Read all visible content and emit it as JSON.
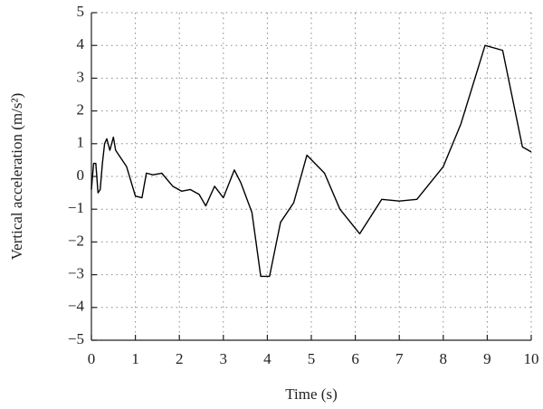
{
  "chart_data": {
    "type": "line",
    "xlabel": "Time (s)",
    "ylabel": "Vertical acceleration (m/s²)",
    "xlim": [
      0,
      10
    ],
    "ylim": [
      -5,
      5
    ],
    "xticks": [
      0,
      1,
      2,
      3,
      4,
      5,
      6,
      7,
      8,
      9,
      10
    ],
    "yticks": [
      {
        "value": -5,
        "label": "−5"
      },
      {
        "value": -4,
        "label": "−4"
      },
      {
        "value": -3,
        "label": "−3"
      },
      {
        "value": -2,
        "label": "−2"
      },
      {
        "value": -1,
        "label": "−1"
      },
      0,
      1,
      2,
      3,
      4,
      5
    ],
    "grid": true,
    "series": [
      {
        "color": "#000000",
        "x": [
          0.0,
          0.05,
          0.1,
          0.15,
          0.2,
          0.25,
          0.3,
          0.35,
          0.42,
          0.5,
          0.55,
          0.8,
          1.0,
          1.15,
          1.25,
          1.4,
          1.6,
          1.85,
          2.05,
          2.25,
          2.45,
          2.6,
          2.8,
          3.0,
          3.25,
          3.4,
          3.65,
          3.85,
          4.05,
          4.3,
          4.6,
          4.9,
          5.3,
          5.65,
          6.1,
          6.6,
          7.0,
          7.4,
          8.0,
          8.4,
          8.95,
          9.35,
          9.8,
          10.0
        ],
        "values": [
          -0.4,
          0.4,
          0.4,
          -0.5,
          -0.4,
          0.4,
          1.0,
          1.15,
          0.8,
          1.2,
          0.8,
          0.3,
          -0.6,
          -0.65,
          0.1,
          0.05,
          0.1,
          -0.3,
          -0.45,
          -0.4,
          -0.55,
          -0.9,
          -0.3,
          -0.65,
          0.2,
          -0.2,
          -1.1,
          -3.05,
          -3.05,
          -1.4,
          -0.8,
          0.65,
          0.1,
          -1.0,
          -1.75,
          -0.7,
          -0.75,
          -0.7,
          0.3,
          1.6,
          4.0,
          3.85,
          0.9,
          0.75
        ]
      }
    ]
  }
}
